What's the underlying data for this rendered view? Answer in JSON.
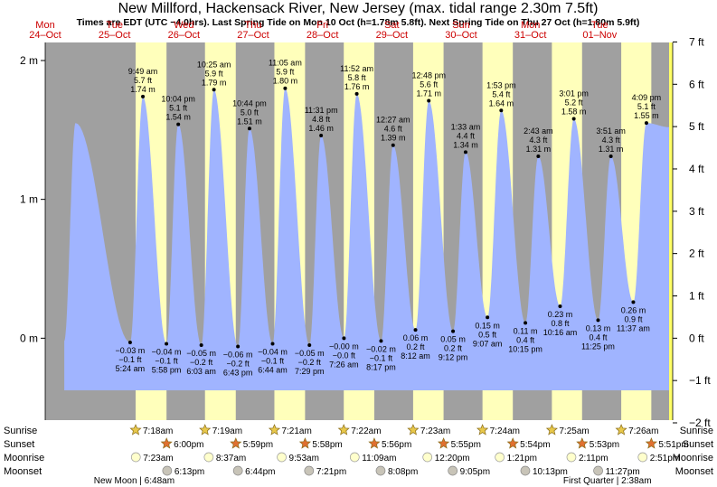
{
  "title": "New Millford, Hackensack River, New Jersey (max. tidal range 2.30m 7.5ft)",
  "subtitle": "Times are EDT (UTC −4.0hrs). Last Spring Tide on Mon 10 Oct (h=1.78m 5.8ft). Next Spring Tide on Thu 27 Oct (h=1.80m 5.9ft)",
  "days": [
    {
      "weekday": "Mon",
      "date": "24–Oct"
    },
    {
      "weekday": "Tue",
      "date": "25–Oct"
    },
    {
      "weekday": "Wed",
      "date": "26–Oct"
    },
    {
      "weekday": "Thu",
      "date": "27–Oct"
    },
    {
      "weekday": "Fri",
      "date": "28–Oct"
    },
    {
      "weekday": "Sat",
      "date": "29–Oct"
    },
    {
      "weekday": "Sun",
      "date": "30–Oct"
    },
    {
      "weekday": "Mon",
      "date": "31–Oct"
    },
    {
      "weekday": "Tue",
      "date": "01–Nov"
    }
  ],
  "chart_data": {
    "type": "area",
    "title": "New Millford, Hackensack River, New Jersey (max. tidal range 2.30m 7.5ft)",
    "x_unit": "hours since Mon 24-Oct 00:00 (EDT)",
    "x_range": [
      0,
      216
    ],
    "y_left_label": "m",
    "y_left_ticks": [
      {
        "v": 0,
        "label": "0 m"
      },
      {
        "v": 1,
        "label": "1 m"
      },
      {
        "v": 2,
        "label": "2 m"
      }
    ],
    "y_right_ticks": [
      {
        "v": -2,
        "label": "−2 ft"
      },
      {
        "v": -1,
        "label": "−1 ft"
      },
      {
        "v": 0,
        "label": "0 ft"
      },
      {
        "v": 1,
        "label": "1 ft"
      },
      {
        "v": 2,
        "label": "2 ft"
      },
      {
        "v": 3,
        "label": "3 ft"
      },
      {
        "v": 4,
        "label": "4 ft"
      },
      {
        "v": 5,
        "label": "5 ft"
      },
      {
        "v": 6,
        "label": "6 ft"
      },
      {
        "v": 7,
        "label": "7 ft"
      }
    ],
    "ylim_m": [
      -0.59,
      2.13
    ],
    "start_level_m": 1.55,
    "end_level_m": 1.52,
    "tides": [
      {
        "t": 29.4,
        "m": -0.03,
        "time": "5:24 am",
        "meters": "−0.03 m",
        "feet": "−0.1 ft",
        "type": "low"
      },
      {
        "t": 33.82,
        "m": 1.74,
        "time": "9:49 am",
        "meters": "1.74 m",
        "feet": "5.7 ft",
        "type": "high"
      },
      {
        "t": 41.97,
        "m": -0.04,
        "time": "5:58 pm",
        "meters": "−0.04 m",
        "feet": "−0.1 ft",
        "type": "low"
      },
      {
        "t": 46.07,
        "m": 1.54,
        "time": "10:04 pm",
        "meters": "1.54 m",
        "feet": "5.1 ft",
        "type": "high"
      },
      {
        "t": 54.05,
        "m": -0.05,
        "time": "6:03 am",
        "meters": "−0.05 m",
        "feet": "−0.2 ft",
        "type": "low"
      },
      {
        "t": 58.42,
        "m": 1.79,
        "time": "10:25 am",
        "meters": "1.79 m",
        "feet": "5.9 ft",
        "type": "high"
      },
      {
        "t": 66.72,
        "m": -0.06,
        "time": "6:43 pm",
        "meters": "−0.06 m",
        "feet": "−0.2 ft",
        "type": "low"
      },
      {
        "t": 70.73,
        "m": 1.51,
        "time": "10:44 pm",
        "meters": "1.51 m",
        "feet": "5.0 ft",
        "type": "high"
      },
      {
        "t": 78.73,
        "m": -0.04,
        "time": "6:44 am",
        "meters": "−0.04 m",
        "feet": "−0.1 ft",
        "type": "low"
      },
      {
        "t": 83.08,
        "m": 1.8,
        "time": "11:05 am",
        "meters": "1.80 m",
        "feet": "5.9 ft",
        "type": "high"
      },
      {
        "t": 91.48,
        "m": -0.05,
        "time": "7:29 pm",
        "meters": "−0.05 m",
        "feet": "−0.2 ft",
        "type": "low"
      },
      {
        "t": 95.52,
        "m": 1.46,
        "time": "11:31 pm",
        "meters": "1.46 m",
        "feet": "4.8 ft",
        "type": "high"
      },
      {
        "t": 103.43,
        "m": -0.0,
        "time": "7:26 am",
        "meters": "−0.00 m",
        "feet": "−0.0 ft",
        "type": "low"
      },
      {
        "t": 107.87,
        "m": 1.76,
        "time": "11:52 am",
        "meters": "1.76 m",
        "feet": "5.8 ft",
        "type": "high"
      },
      {
        "t": 116.28,
        "m": -0.02,
        "time": "8:17 pm",
        "meters": "−0.02 m",
        "feet": "−0.1 ft",
        "type": "low"
      },
      {
        "t": 120.45,
        "m": 1.39,
        "time": "12:27 am",
        "meters": "1.39 m",
        "feet": "4.6 ft",
        "type": "high"
      },
      {
        "t": 128.2,
        "m": 0.06,
        "time": "8:12 am",
        "meters": "0.06 m",
        "feet": "0.2 ft",
        "type": "low"
      },
      {
        "t": 132.8,
        "m": 1.71,
        "time": "12:48 pm",
        "meters": "1.71 m",
        "feet": "5.6 ft",
        "type": "high"
      },
      {
        "t": 141.2,
        "m": 0.05,
        "time": "9:12 pm",
        "meters": "0.05 m",
        "feet": "0.2 ft",
        "type": "low"
      },
      {
        "t": 145.55,
        "m": 1.34,
        "time": "1:33 am",
        "meters": "1.34 m",
        "feet": "4.4 ft",
        "type": "high"
      },
      {
        "t": 153.12,
        "m": 0.15,
        "time": "9:07 am",
        "meters": "0.15 m",
        "feet": "0.5 ft",
        "type": "low"
      },
      {
        "t": 157.88,
        "m": 1.64,
        "time": "1:53 pm",
        "meters": "1.64 m",
        "feet": "5.4 ft",
        "type": "high"
      },
      {
        "t": 166.25,
        "m": 0.11,
        "time": "10:15 pm",
        "meters": "0.11 m",
        "feet": "0.4 ft",
        "type": "low"
      },
      {
        "t": 170.72,
        "m": 1.31,
        "time": "2:43 am",
        "meters": "1.31 m",
        "feet": "4.3 ft",
        "type": "high"
      },
      {
        "t": 178.27,
        "m": 0.23,
        "time": "10:16 am",
        "meters": "0.23 m",
        "feet": "0.8 ft",
        "type": "low"
      },
      {
        "t": 183.02,
        "m": 1.58,
        "time": "3:01 pm",
        "meters": "1.58 m",
        "feet": "5.2 ft",
        "type": "high"
      },
      {
        "t": 191.42,
        "m": 0.13,
        "time": "11:25 pm",
        "meters": "0.13 m",
        "feet": "0.4 ft",
        "type": "low"
      },
      {
        "t": 195.85,
        "m": 1.31,
        "time": "3:51 am",
        "meters": "1.31 m",
        "feet": "4.3 ft",
        "type": "high"
      },
      {
        "t": 203.62,
        "m": 0.26,
        "time": "11:37 am",
        "meters": "0.26 m",
        "feet": "0.9 ft",
        "type": "low"
      },
      {
        "t": 208.15,
        "m": 1.55,
        "time": "4:09 pm",
        "meters": "1.55 m",
        "feet": "5.1 ft",
        "type": "high"
      }
    ],
    "daylight": [
      {
        "rise": 31.3,
        "set": 42.0
      },
      {
        "rise": 55.32,
        "set": 65.98
      },
      {
        "rise": 79.35,
        "set": 89.97
      },
      {
        "rise": 103.37,
        "set": 113.93
      },
      {
        "rise": 127.38,
        "set": 137.92
      },
      {
        "rise": 151.4,
        "set": 161.9
      },
      {
        "rise": 175.42,
        "set": 185.88
      },
      {
        "rise": 199.43,
        "set": 209.85
      }
    ],
    "series_colors": {
      "water": "#a0b4ff",
      "day": "#ffffbb",
      "night": "#a0a0a0",
      "day_label": "#cc0000"
    }
  },
  "rows": {
    "sunrise_label": "Sunrise",
    "sunset_label": "Sunset",
    "moonrise_label": "Moonrise",
    "moonset_label": "Moonset"
  },
  "sunrise": [
    {
      "t": 31.3,
      "time": "7:18am"
    },
    {
      "t": 55.32,
      "time": "7:19am"
    },
    {
      "t": 79.35,
      "time": "7:21am"
    },
    {
      "t": 103.37,
      "time": "7:22am"
    },
    {
      "t": 127.38,
      "time": "7:23am"
    },
    {
      "t": 151.4,
      "time": "7:24am"
    },
    {
      "t": 175.42,
      "time": "7:25am"
    },
    {
      "t": 199.43,
      "time": "7:26am"
    }
  ],
  "sunset": [
    {
      "t": 42.0,
      "time": "6:00pm"
    },
    {
      "t": 65.98,
      "time": "5:59pm"
    },
    {
      "t": 89.97,
      "time": "5:58pm"
    },
    {
      "t": 113.93,
      "time": "5:56pm"
    },
    {
      "t": 137.92,
      "time": "5:55pm"
    },
    {
      "t": 161.9,
      "time": "5:54pm"
    },
    {
      "t": 185.88,
      "time": "5:53pm"
    },
    {
      "t": 209.85,
      "time": "5:51pm"
    }
  ],
  "moonrise": [
    {
      "t": 31.38,
      "time": "7:23am"
    },
    {
      "t": 56.62,
      "time": "8:37am"
    },
    {
      "t": 81.88,
      "time": "9:53am"
    },
    {
      "t": 107.15,
      "time": "11:09am"
    },
    {
      "t": 132.33,
      "time": "12:20pm"
    },
    {
      "t": 157.35,
      "time": "1:21pm"
    },
    {
      "t": 182.18,
      "time": "2:11pm"
    },
    {
      "t": 206.85,
      "time": "2:51pm"
    }
  ],
  "moonset": [
    {
      "t": 42.22,
      "time": "6:13pm"
    },
    {
      "t": 66.73,
      "time": "6:44pm"
    },
    {
      "t": 91.35,
      "time": "7:21pm"
    },
    {
      "t": 116.13,
      "time": "8:08pm"
    },
    {
      "t": 141.08,
      "time": "9:05pm"
    },
    {
      "t": 166.22,
      "time": "10:13pm"
    },
    {
      "t": 191.45,
      "time": "11:27pm"
    }
  ],
  "moon_phases": [
    {
      "t": 30.8,
      "label": "New Moon | 6:48am"
    },
    {
      "t": 194.63,
      "label": "First Quarter | 2:38am"
    }
  ]
}
